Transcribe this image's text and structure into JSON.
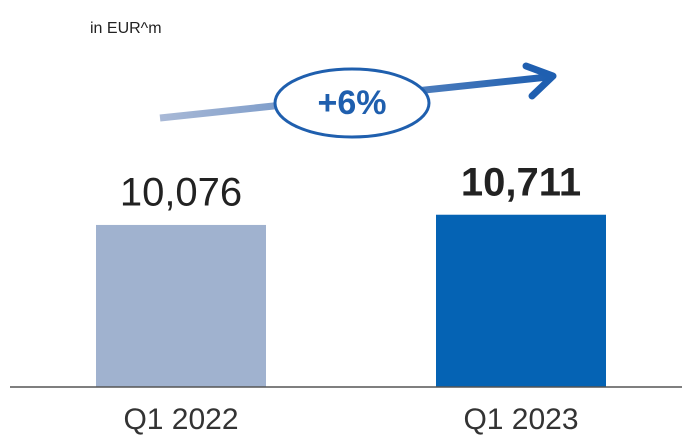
{
  "chart_data": {
    "type": "bar",
    "subtitle": "in EUR^m",
    "annotation": "+6%",
    "categories": [
      "Q1 2022",
      "Q1 2023"
    ],
    "values": [
      10076,
      10711
    ],
    "value_labels": [
      "10,076",
      "10,711"
    ],
    "colors": [
      "#a0b2cf",
      "#0563b4"
    ],
    "ylim": [
      0,
      12000
    ]
  }
}
